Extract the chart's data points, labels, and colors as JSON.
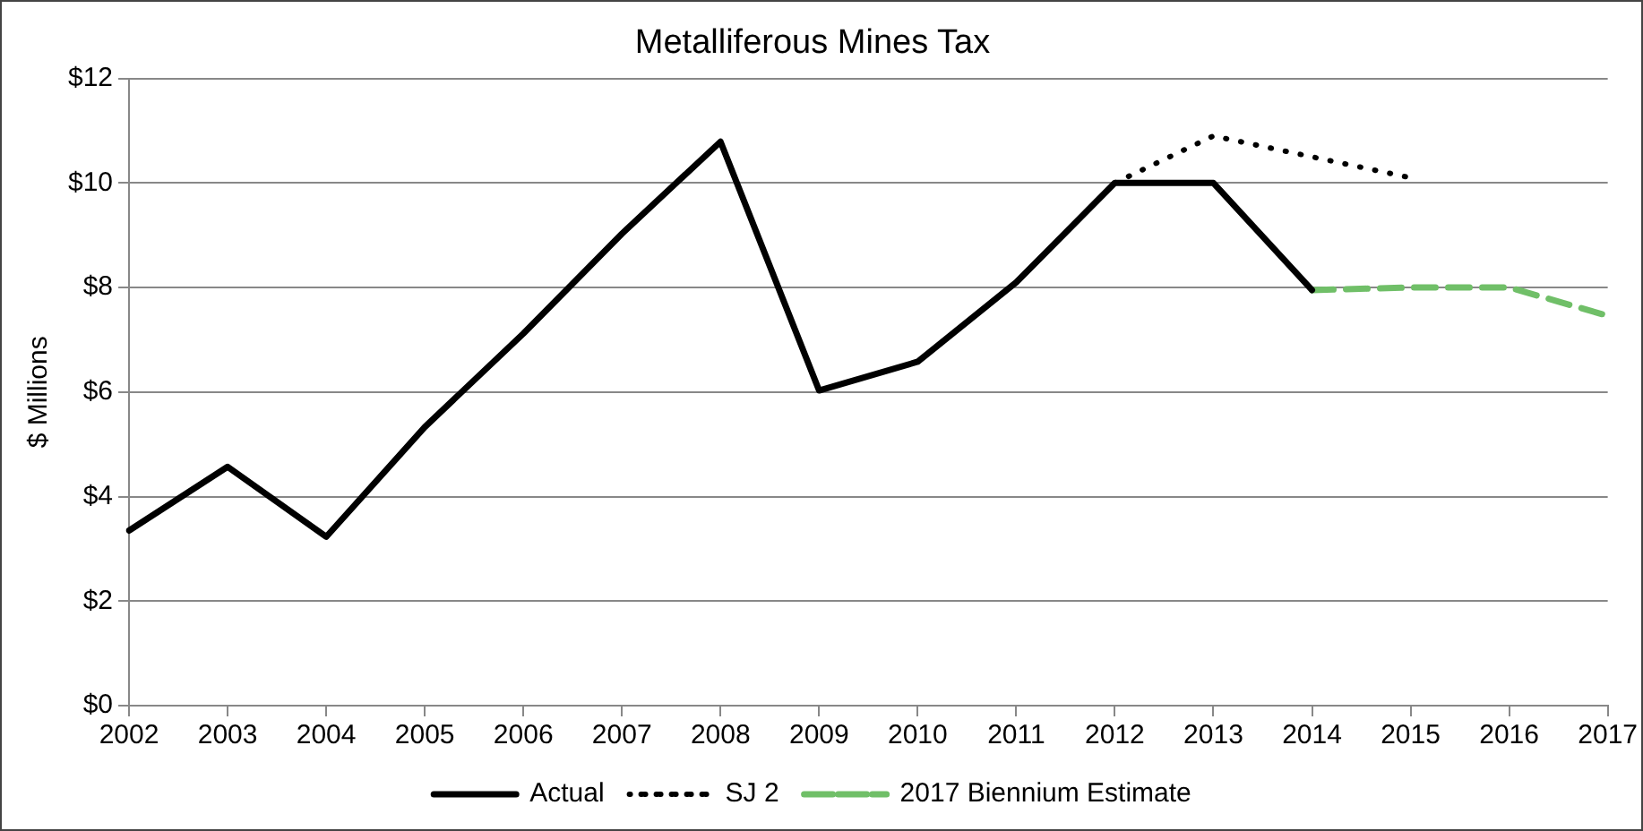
{
  "chart_data": {
    "type": "line",
    "title": "Metalliferous Mines Tax",
    "ylabel": "$ Millions",
    "categories": [
      "2002",
      "2003",
      "2004",
      "2005",
      "2006",
      "2007",
      "2008",
      "2009",
      "2010",
      "2011",
      "2012",
      "2013",
      "2014",
      "2015",
      "2016",
      "2017"
    ],
    "series": [
      {
        "name": "Actual",
        "color": "#000000",
        "line_style": "solid",
        "values": [
          3.35,
          4.57,
          3.23,
          5.33,
          7.12,
          9.03,
          10.79,
          6.03,
          6.58,
          8.1,
          10.0,
          10.0,
          7.95,
          null,
          null,
          null
        ]
      },
      {
        "name": "SJ 2",
        "color": "#000000",
        "line_style": "dotted",
        "values": [
          null,
          null,
          null,
          null,
          null,
          null,
          null,
          null,
          null,
          null,
          10.0,
          10.9,
          10.5,
          10.1,
          null,
          null
        ]
      },
      {
        "name": "2017 Biennium Estimate",
        "color": "#70bf68",
        "line_style": "dashed",
        "values": [
          null,
          null,
          null,
          null,
          null,
          null,
          null,
          null,
          null,
          null,
          null,
          null,
          7.95,
          8.0,
          8.0,
          7.46
        ]
      }
    ],
    "ylim": [
      0,
      12
    ],
    "yticks": [
      {
        "value": 0,
        "label": "$0"
      },
      {
        "value": 2,
        "label": "$2"
      },
      {
        "value": 4,
        "label": "$4"
      },
      {
        "value": 6,
        "label": "$6"
      },
      {
        "value": 8,
        "label": "$8"
      },
      {
        "value": 10,
        "label": "$10"
      },
      {
        "value": 12,
        "label": "$12"
      }
    ],
    "grid": "y",
    "legend": "bottom",
    "marker": "none"
  }
}
